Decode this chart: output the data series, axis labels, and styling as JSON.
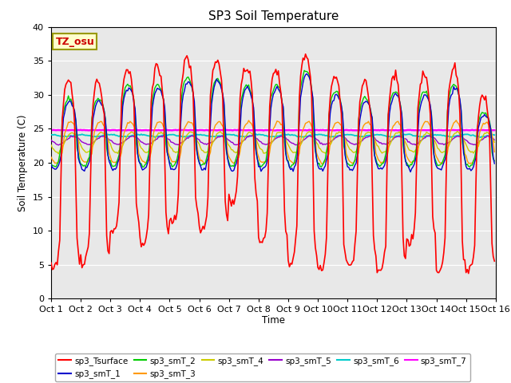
{
  "title": "SP3 Soil Temperature",
  "ylabel": "Soil Temperature (C)",
  "xlabel": "Time",
  "annotation": "TZ_osu",
  "ylim": [
    0,
    40
  ],
  "xlim": [
    0,
    15
  ],
  "xtick_labels": [
    "Oct 1",
    "Oct 2",
    "Oct 3",
    "Oct 4",
    "Oct 5",
    "Oct 6",
    "Oct 7",
    "Oct 8",
    "Oct 9",
    "Oct 10",
    "Oct 11",
    "Oct 12",
    "Oct 13",
    "Oct 14",
    "Oct 15",
    "Oct 16"
  ],
  "series_colors": {
    "sp3_Tsurface": "#FF0000",
    "sp3_smT_1": "#0000CC",
    "sp3_smT_2": "#00CC00",
    "sp3_smT_3": "#FF9900",
    "sp3_smT_4": "#CCCC00",
    "sp3_smT_5": "#9900CC",
    "sp3_smT_6": "#00CCCC",
    "sp3_smT_7": "#FF00FF"
  },
  "bg_color": "#E8E8E8"
}
